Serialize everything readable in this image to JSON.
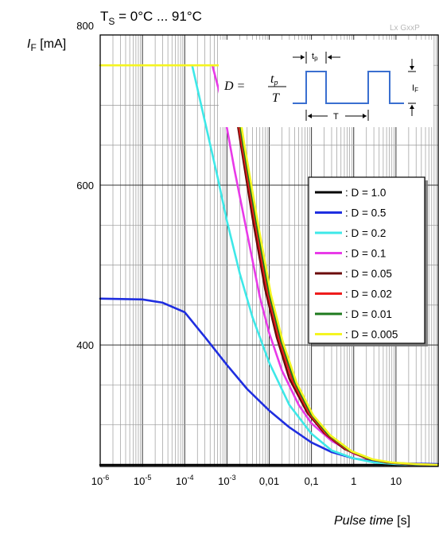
{
  "chart_data": {
    "type": "line",
    "title": "T",
    "title_sub": "S",
    "title_rest": " = 0°C ... 91°C",
    "watermark": "Lx GxxP",
    "ylabel_main": "I",
    "ylabel_sub": "F",
    "ylabel_unit": " [mA]",
    "xlabel_main": "Pulse time",
    "xlabel_unit": " [s]",
    "x_scale": "log",
    "xlim": [
      1e-06,
      100
    ],
    "ylim": [
      248,
      788
    ],
    "x_ticks": [
      {
        "base": "10",
        "exp": "-6",
        "value": 1e-06
      },
      {
        "base": "10",
        "exp": "-5",
        "value": 1e-05
      },
      {
        "base": "10",
        "exp": "-4",
        "value": 0.0001
      },
      {
        "base": "10",
        "exp": "-3",
        "value": 0.001
      },
      {
        "base": "0,01",
        "exp": "",
        "value": 0.01
      },
      {
        "base": "0,1",
        "exp": "",
        "value": 0.1
      },
      {
        "base": "1",
        "exp": "",
        "value": 1
      },
      {
        "base": "10",
        "exp": "",
        "value": 10
      }
    ],
    "y_ticks": [
      400,
      600,
      800
    ],
    "grid": true,
    "legend_position": "right",
    "inset": {
      "formula_lhs": "D =",
      "formula_num": "t",
      "formula_num_sub": "p",
      "formula_den": "T",
      "tp_label": "t",
      "tp_sub": "p",
      "period_label": "T",
      "amp_label": "I",
      "amp_sub": "F"
    },
    "series": [
      {
        "name": ": D = 1.0",
        "color": "#000000",
        "x": [
          1e-06,
          100
        ],
        "y": [
          250,
          250
        ]
      },
      {
        "name": ": D = 0.5",
        "color": "#1f2ee0",
        "x": [
          1e-06,
          1e-05,
          3e-05,
          0.0001,
          0.0003,
          0.001,
          0.003,
          0.01,
          0.03,
          0.1,
          0.3,
          1,
          3,
          10,
          100
        ],
        "y": [
          458,
          457,
          453,
          441,
          410,
          375,
          345,
          318,
          297,
          278,
          266,
          258,
          254,
          252,
          251
        ]
      },
      {
        "name": ": D = 0.2",
        "color": "#3ee8e8",
        "x": [
          0.00015,
          0.0003,
          0.0006,
          0.001,
          0.002,
          0.004,
          0.01,
          0.03,
          0.1,
          0.3,
          1,
          3,
          10,
          100
        ],
        "y": [
          750,
          680,
          610,
          555,
          490,
          435,
          378,
          325,
          289,
          268,
          258,
          253,
          251,
          250
        ]
      },
      {
        "name": ": D = 0.1",
        "color": "#e83ae8",
        "x": [
          0.00045,
          0.0008,
          0.0015,
          0.003,
          0.006,
          0.01,
          0.02,
          0.05,
          0.1,
          0.3,
          1,
          3,
          10,
          100
        ],
        "y": [
          750,
          700,
          620,
          540,
          460,
          415,
          368,
          325,
          302,
          280,
          264,
          256,
          252,
          250
        ]
      },
      {
        "name": ": D = 0.05",
        "color": "#6b0a0a",
        "x": [
          0.0009,
          0.0012,
          0.002,
          0.004,
          0.008,
          0.015,
          0.03,
          0.08,
          0.2,
          0.6,
          2,
          6,
          20,
          100
        ],
        "y": [
          750,
          735,
          660,
          560,
          470,
          410,
          358,
          315,
          290,
          270,
          258,
          253,
          251,
          250
        ]
      },
      {
        "name": ": D = 0.02",
        "color": "#ee1c1c",
        "x": [
          0.001,
          0.0013,
          0.0022,
          0.0045,
          0.009,
          0.017,
          0.035,
          0.09,
          0.22,
          0.7,
          2,
          6,
          20,
          100
        ],
        "y": [
          750,
          733,
          655,
          557,
          468,
          408,
          356,
          314,
          289,
          269,
          258,
          253,
          251,
          250
        ]
      },
      {
        "name": ": D = 0.01",
        "color": "#1e7a1e",
        "x": [
          0.001,
          0.0014,
          0.0024,
          0.005,
          0.01,
          0.019,
          0.04,
          0.1,
          0.25,
          0.8,
          2.5,
          7,
          25,
          100
        ],
        "y": [
          750,
          732,
          652,
          553,
          465,
          406,
          354,
          313,
          288,
          268,
          257,
          253,
          251,
          250
        ]
      },
      {
        "name": ": D = 0.005",
        "color": "#f5f520",
        "x": [
          1e-06,
          0.0011,
          0.0015,
          0.0026,
          0.0055,
          0.011,
          0.021,
          0.045,
          0.11,
          0.28,
          0.9,
          2.8,
          8,
          30,
          100
        ],
        "y": [
          750,
          750,
          730,
          650,
          550,
          463,
          404,
          352,
          312,
          287,
          267,
          257,
          253,
          251,
          250
        ]
      }
    ]
  }
}
